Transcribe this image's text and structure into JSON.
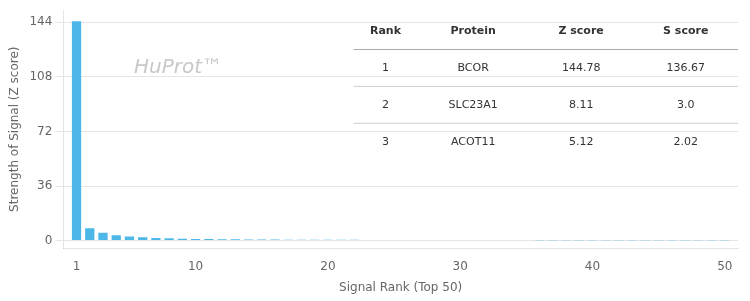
{
  "chart_data": {
    "type": "bar",
    "xlabel": "Signal Rank (Top 50)",
    "ylabel": "Strength of Signal (Z score)",
    "x": [
      1,
      2,
      3,
      4,
      5,
      6,
      7,
      8,
      9,
      10,
      11,
      12,
      13,
      14,
      15,
      16,
      17,
      18,
      19,
      20,
      21,
      22,
      23,
      24,
      25,
      26,
      27,
      28,
      29,
      30,
      31,
      32,
      33,
      34,
      35,
      36,
      37,
      38,
      39,
      40,
      41,
      42,
      43,
      44,
      45,
      46,
      47,
      48,
      49,
      50
    ],
    "values": [
      144.78,
      8.11,
      5.12,
      3.5,
      2.8,
      2.2,
      1.8,
      1.5,
      1.3,
      1.1,
      1.0,
      0.9,
      0.85,
      0.8,
      0.75,
      0.7,
      0.65,
      0.6,
      0.58,
      0.55,
      0.52,
      0.5,
      0.48,
      0.46,
      0.44,
      0.42,
      0.41,
      0.4,
      0.39,
      0.38,
      0.37,
      0.36,
      0.35,
      0.34,
      0.33,
      0.32,
      0.31,
      0.3,
      0.3,
      0.29,
      0.28,
      0.27,
      0.27,
      0.26,
      0.25,
      0.25,
      0.24,
      0.23,
      0.23,
      0.22
    ],
    "color": "#4db8e8",
    "xlim": [
      0,
      51
    ],
    "xticks": [
      1,
      10,
      20,
      30,
      40,
      50
    ],
    "ylim": [
      -5,
      152
    ],
    "yticks": [
      0,
      36,
      72,
      108,
      144
    ],
    "grid": true,
    "annotations": [
      {
        "text": "HuProt™"
      }
    ],
    "table": {
      "header": [
        "Rank",
        "Protein",
        "Z score",
        "S score"
      ],
      "rows": [
        [
          "1",
          "BCOR",
          "144.78",
          "136.67"
        ],
        [
          "2",
          "SLC23A1",
          "8.11",
          "3.0"
        ],
        [
          "3",
          "ACOT11",
          "5.12",
          "2.02"
        ]
      ]
    }
  }
}
